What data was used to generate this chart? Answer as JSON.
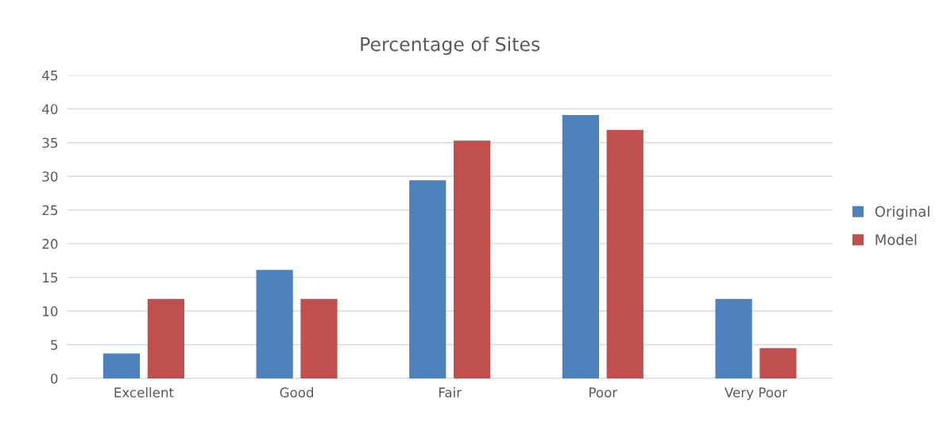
{
  "chart_data": {
    "type": "bar",
    "title": "Percentage of Sites",
    "categories": [
      "Excellent",
      "Good",
      "Fair",
      "Poor",
      "Very Poor"
    ],
    "series": [
      {
        "name": "Original",
        "color": "#4f81bd",
        "values": [
          3.7,
          16.1,
          29.4,
          39.1,
          11.8
        ]
      },
      {
        "name": "Model",
        "color": "#c0504d",
        "values": [
          11.8,
          11.8,
          35.3,
          36.9,
          4.5
        ]
      }
    ],
    "ylim": [
      0,
      45
    ],
    "yticks": [
      0,
      5,
      10,
      15,
      20,
      25,
      30,
      35,
      40,
      45
    ],
    "grid": "y",
    "legend": "right"
  }
}
